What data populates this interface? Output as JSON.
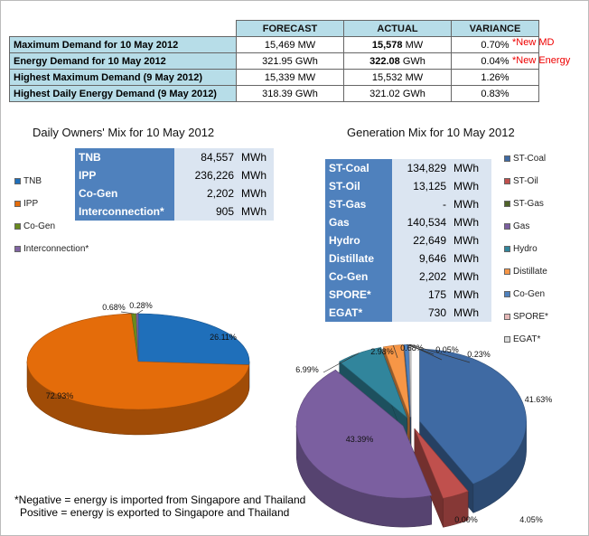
{
  "summary": {
    "headers": [
      "FORECAST",
      "ACTUAL",
      "VARIANCE"
    ],
    "rows": [
      {
        "label": "Maximum Demand for 10 May 2012",
        "forecast": "15,469",
        "forecast_unit": "MW",
        "actual": "15,578",
        "actual_unit": "MW",
        "variance": "0.70%",
        "note": "*New MD"
      },
      {
        "label": "Energy Demand for 10 May 2012",
        "forecast": "321.95",
        "forecast_unit": "GWh",
        "actual": "322.08",
        "actual_unit": "GWh",
        "variance": "0.04%",
        "note": "*New Energy"
      },
      {
        "label": "Highest Maximum Demand (9 May 2012)",
        "forecast": "15,339",
        "forecast_unit": "MW",
        "actual": "15,532",
        "actual_unit": "MW",
        "variance": "1.26%",
        "note": ""
      },
      {
        "label": "Highest Daily Energy Demand (9 May 2012)",
        "forecast": "318.39",
        "forecast_unit": "GWh",
        "actual": "321.02",
        "actual_unit": "GWh",
        "variance": "0.83%",
        "note": ""
      }
    ]
  },
  "owners_box": [
    {
      "k": "TNB",
      "v": "84,557",
      "u": "MWh"
    },
    {
      "k": "IPP",
      "v": "236,226",
      "u": "MWh"
    },
    {
      "k": "Co-Gen",
      "v": "2,202",
      "u": "MWh"
    },
    {
      "k": "Interconnection*",
      "v": "905",
      "u": "MWh"
    }
  ],
  "gen_box": [
    {
      "k": "ST-Coal",
      "v": "134,829",
      "u": "MWh"
    },
    {
      "k": "ST-Oil",
      "v": "13,125",
      "u": "MWh"
    },
    {
      "k": "ST-Gas",
      "v": "-",
      "u": "MWh"
    },
    {
      "k": "Gas",
      "v": "140,534",
      "u": "MWh"
    },
    {
      "k": "Hydro",
      "v": "22,649",
      "u": "MWh"
    },
    {
      "k": "Distillate",
      "v": "9,646",
      "u": "MWh"
    },
    {
      "k": "Co-Gen",
      "v": "2,202",
      "u": "MWh"
    },
    {
      "k": "SPORE*",
      "v": "175",
      "u": "MWh"
    },
    {
      "k": "EGAT*",
      "v": "730",
      "u": "MWh"
    }
  ],
  "footer": {
    "line1": "*Negative = energy is imported from Singapore and Thailand",
    "line2": "Positive = energy is exported to Singapore and Thailand"
  },
  "chart_data": [
    {
      "type": "pie",
      "title": "Daily Owners' Mix for 10 May 2012",
      "legend_position": "left",
      "categories": [
        "TNB",
        "IPP",
        "Co-Gen",
        "Interconnection*"
      ],
      "values": [
        26.11,
        72.93,
        0.68,
        0.28
      ],
      "labels": [
        "26.11%",
        "72.93%",
        "0.68%",
        "0.28%"
      ],
      "colors": [
        "#1f6fba",
        "#e46c0a",
        "#6a8a1e",
        "#8064a2"
      ]
    },
    {
      "type": "pie",
      "title": "Generation Mix for 10 May 2012",
      "legend_position": "right",
      "categories": [
        "ST-Coal",
        "ST-Oil",
        "ST-Gas",
        "Gas",
        "Hydro",
        "Distillate",
        "Co-Gen",
        "SPORE*",
        "EGAT*"
      ],
      "values": [
        41.63,
        4.05,
        0.0,
        43.39,
        6.99,
        2.98,
        0.68,
        0.05,
        0.23
      ],
      "labels": [
        "41.63%",
        "4.05%",
        "0.00%",
        "43.39%",
        "6.99%",
        "2.98%",
        "0.68%",
        "0.05%",
        "0.23%"
      ],
      "colors": [
        "#3f6aa3",
        "#c0504d",
        "#4f6228",
        "#7b5fa0",
        "#31859c",
        "#f79646",
        "#4f81bd",
        "#e6b9b8",
        "#d9d9d9"
      ]
    }
  ]
}
